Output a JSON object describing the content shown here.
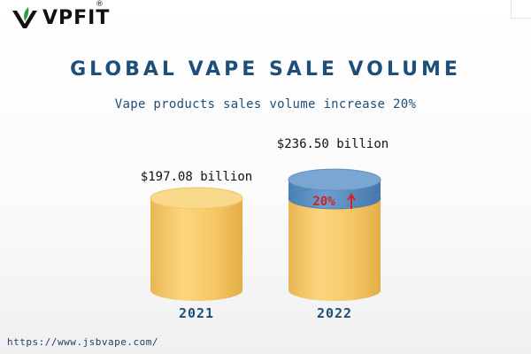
{
  "logo": {
    "text": "VPFIT",
    "mark": "®",
    "leaf_color": "#3a9a3a"
  },
  "title": "GLOBAL VAPE SALE VOLUME",
  "subtitle": "Vape products sales volume increase 20%",
  "url": "https://www.jsbvape.com/",
  "colors": {
    "accent": "#1d4f7a",
    "cylinder": "#f5c765",
    "increase": "#5b8fc0",
    "arrow": "#d81e1e"
  },
  "chart_data": {
    "type": "bar",
    "style": "3d-cylinder",
    "categories": [
      "2021",
      "2022"
    ],
    "values": [
      197.08,
      236.5
    ],
    "value_labels": [
      "$197.08 billion",
      "$236.50 billion"
    ],
    "increase_label": "20%",
    "increase_icon": "up-arrow-icon",
    "title": "GLOBAL VAPE SALE VOLUME",
    "subtitle": "Vape products sales volume increase 20%"
  }
}
